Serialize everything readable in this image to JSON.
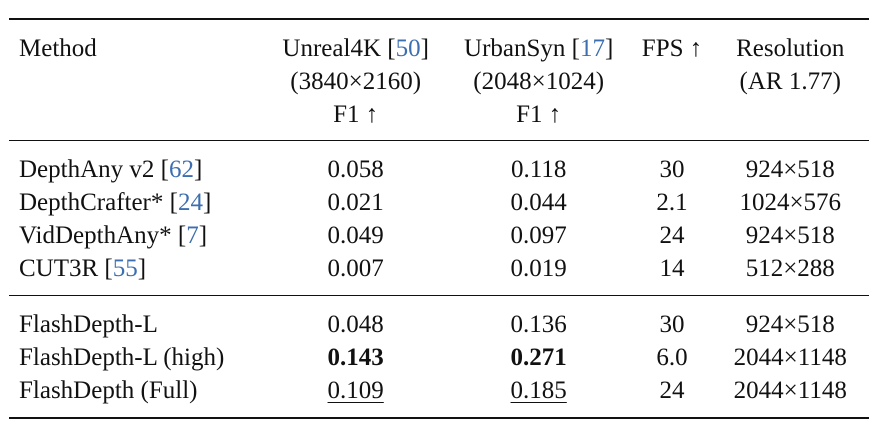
{
  "table": {
    "headers": {
      "method": "Method",
      "unreal": {
        "line1_name": "Unreal4K [",
        "line1_cite": "50",
        "line1_close": "]",
        "line2": "(3840×2160)",
        "line3": "F1 ↑"
      },
      "urban": {
        "line1_name": "UrbanSyn [",
        "line1_cite": "17",
        "line1_close": "]",
        "line2": "(2048×1024)",
        "line3": "F1 ↑"
      },
      "fps": "FPS ↑",
      "resolution": {
        "line1": "Resolution",
        "line2": "(AR 1.77)"
      }
    },
    "group1": [
      {
        "method": "DepthAny v2 [",
        "cite": "62",
        "close": "]",
        "unreal": "0.058",
        "urban": "0.118",
        "fps": "30",
        "resolution": "924×518"
      },
      {
        "method": "DepthCrafter* [",
        "cite": "24",
        "close": "]",
        "unreal": "0.021",
        "urban": "0.044",
        "fps": "2.1",
        "resolution": "1024×576"
      },
      {
        "method": "VidDepthAny* [",
        "cite": "7",
        "close": "]",
        "unreal": "0.049",
        "urban": "0.097",
        "fps": "24",
        "resolution": "924×518"
      },
      {
        "method": "CUT3R [",
        "cite": "55",
        "close": "]",
        "unreal": "0.007",
        "urban": "0.019",
        "fps": "14",
        "resolution": "512×288"
      }
    ],
    "group2": [
      {
        "method": "FlashDepth-L",
        "unreal": "0.048",
        "urban": "0.136",
        "fps": "30",
        "resolution": "924×518"
      },
      {
        "method": "FlashDepth-L (high)",
        "unreal": "0.143",
        "urban": "0.271",
        "fps": "6.0",
        "resolution": "2044×1148"
      },
      {
        "method": "FlashDepth (Full)",
        "unreal": "0.109",
        "urban": "0.185",
        "fps": "24",
        "resolution": "2044×1148"
      }
    ]
  }
}
